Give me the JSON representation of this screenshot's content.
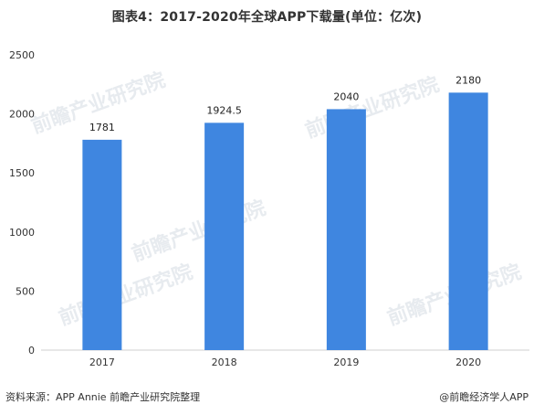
{
  "chart_data": {
    "type": "bar",
    "title": "图表4：2017-2020年全球APP下载量(单位：亿次)",
    "categories": [
      "2017",
      "2018",
      "2019",
      "2020"
    ],
    "values": [
      1781,
      1924.5,
      2040,
      2180
    ],
    "value_labels": [
      "1781",
      "1924.5",
      "2040",
      "2180"
    ],
    "y_ticks": [
      "0",
      "500",
      "1000",
      "1500",
      "2000",
      "2500"
    ],
    "ylim": [
      0,
      2500
    ],
    "xlabel": "",
    "ylabel": "",
    "bar_color": "#3f86e0",
    "grid": false,
    "legend": "none"
  },
  "footer": {
    "source": "资料来源：APP Annie 前瞻产业研究院整理",
    "credit": "@前瞻经济学人APP"
  },
  "watermark": {
    "text": "前瞻产业研究院",
    "color": "#d5dbe3"
  }
}
